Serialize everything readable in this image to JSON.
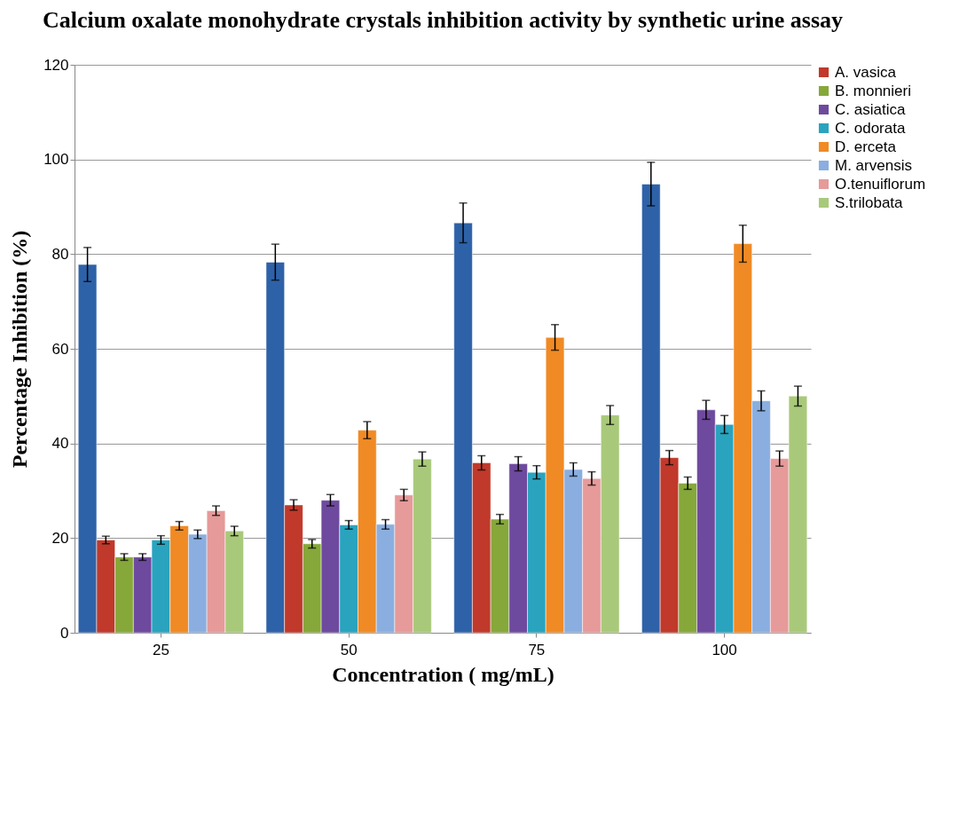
{
  "chart_data": {
    "type": "bar",
    "title": "Calcium oxalate monohydrate crystals inhibition activity by synthetic urine assay",
    "xlabel": "Concentration ( mg/mL)",
    "ylabel": "Percentage Inhibition   (%)",
    "categories": [
      "25",
      "50",
      "75",
      "100"
    ],
    "series": [
      {
        "color": "#2e62a8",
        "values": [
          77.8,
          78.3,
          86.6,
          94.8
        ],
        "errors": [
          3.6,
          3.8,
          4.2,
          4.6
        ]
      },
      {
        "name": "A. vasica",
        "color": "#c0392b",
        "values": [
          19.6,
          27,
          35.9,
          37
        ],
        "errors": [
          0.8,
          1.1,
          1.5,
          1.5
        ]
      },
      {
        "name": "B. monnieri",
        "color": "#86a83a",
        "values": [
          16,
          18.8,
          24,
          31.6
        ],
        "errors": [
          0.7,
          0.9,
          1,
          1.3
        ]
      },
      {
        "name": "C. asiatica",
        "color": "#6e4a9e",
        "values": [
          16,
          28,
          35.7,
          47.1
        ],
        "errors": [
          0.7,
          1.2,
          1.5,
          2
        ]
      },
      {
        "name": "C. odorata",
        "color": "#2aa3bf",
        "values": [
          19.6,
          22.8,
          33.9,
          44
        ],
        "errors": [
          0.9,
          0.9,
          1.4,
          1.9
        ]
      },
      {
        "name": "D. erceta",
        "color": "#f08a24",
        "values": [
          22.6,
          42.8,
          62.4,
          82.2
        ],
        "errors": [
          0.9,
          1.8,
          2.7,
          3.9
        ]
      },
      {
        "name": "M. arvensis",
        "color": "#8aaee0",
        "values": [
          20.8,
          22.9,
          34.5,
          49
        ],
        "errors": [
          0.9,
          1,
          1.4,
          2.1
        ]
      },
      {
        "name": "O.tenuiflorum",
        "color": "#e69a9a",
        "values": [
          25.8,
          29.1,
          32.6,
          36.8
        ],
        "errors": [
          1,
          1.2,
          1.4,
          1.6
        ]
      },
      {
        "name": "S.trilobata",
        "color": "#a9c97a",
        "values": [
          21.5,
          36.7,
          46,
          50
        ],
        "errors": [
          1,
          1.5,
          2,
          2.1
        ]
      }
    ],
    "ylim": [
      0,
      120
    ],
    "yticks": [
      0,
      20,
      40,
      60,
      80,
      100,
      120
    ],
    "grid": "y",
    "legend": "right"
  }
}
